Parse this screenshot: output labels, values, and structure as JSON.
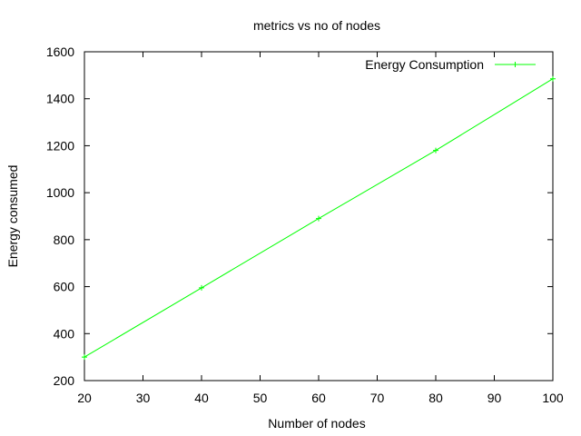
{
  "chart_data": {
    "type": "line",
    "title": "metrics vs no of nodes",
    "xlabel": "Number of nodes",
    "ylabel": "Energy consumed",
    "xlim": [
      20,
      100
    ],
    "ylim": [
      200,
      1600
    ],
    "xticks": [
      20,
      30,
      40,
      50,
      60,
      70,
      80,
      90,
      100
    ],
    "yticks": [
      200,
      400,
      600,
      800,
      1000,
      1200,
      1400,
      1600
    ],
    "grid": false,
    "legend_position": "top-right",
    "series": [
      {
        "name": "Energy Consumption",
        "color": "#00ff00",
        "marker": "plus",
        "x": [
          20,
          40,
          60,
          80,
          100
        ],
        "y": [
          300,
          595,
          890,
          1180,
          1485
        ]
      }
    ]
  }
}
